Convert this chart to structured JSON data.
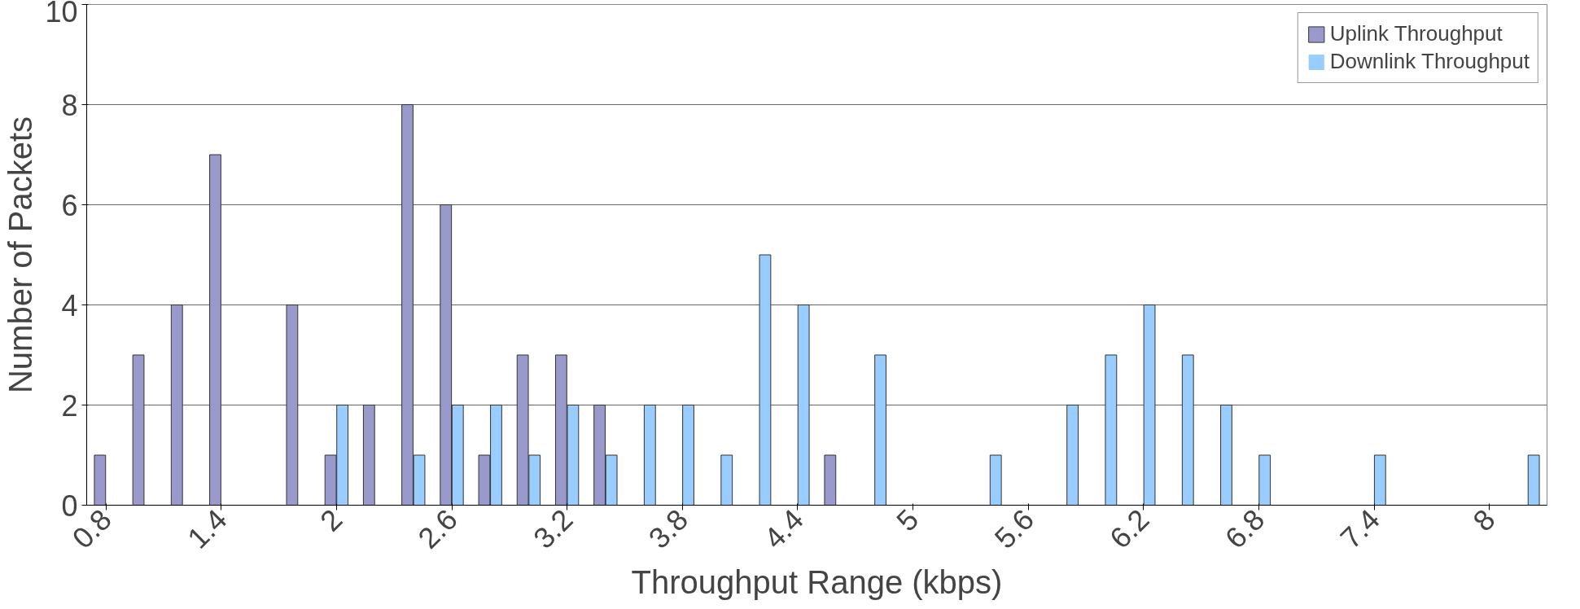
{
  "chart_data": {
    "type": "bar",
    "xlabel": "Throughput Range (kbps)",
    "ylabel": "Number of Packets",
    "categories": [
      "0.8",
      null,
      null,
      "1.4",
      null,
      null,
      "2",
      null,
      null,
      "2.6",
      null,
      null,
      "3.2",
      null,
      null,
      "3.8",
      null,
      null,
      "4.4",
      null,
      null,
      "5",
      null,
      null,
      "5.6",
      null,
      null,
      "6.2",
      null,
      null,
      "6.8",
      null,
      null,
      "7.4",
      null,
      null,
      "8",
      null
    ],
    "series": [
      {
        "name": "Uplink Throughput",
        "color": "#9999cc",
        "values": [
          1,
          3,
          4,
          7,
          0,
          4,
          1,
          2,
          8,
          6,
          1,
          3,
          3,
          2,
          0,
          0,
          0,
          0,
          0,
          1,
          0,
          0,
          0,
          0,
          0,
          0,
          0,
          0,
          0,
          0,
          0,
          0,
          0,
          0,
          0,
          0,
          0,
          0
        ]
      },
      {
        "name": "Downlink Throughput",
        "color": "#99ccff",
        "values": [
          0,
          0,
          0,
          0,
          0,
          0,
          2,
          0,
          1,
          2,
          2,
          1,
          2,
          1,
          2,
          2,
          1,
          5,
          4,
          0,
          3,
          0,
          0,
          1,
          0,
          2,
          3,
          4,
          3,
          2,
          1,
          0,
          0,
          1,
          0,
          0,
          0,
          1
        ]
      }
    ],
    "ylim": [
      0,
      10
    ],
    "yticks": [
      0,
      2,
      4,
      6,
      8,
      10
    ],
    "grid": "y",
    "legend": "top right"
  }
}
